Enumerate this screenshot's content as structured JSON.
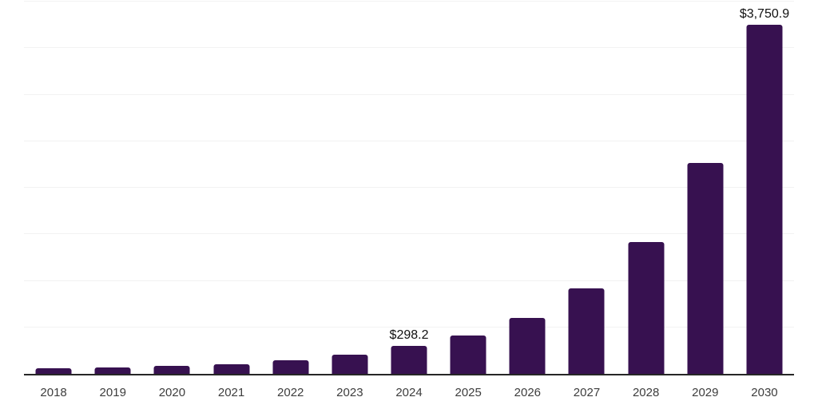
{
  "chart_data": {
    "type": "bar",
    "title": "",
    "xlabel": "",
    "ylabel": "",
    "categories": [
      "2018",
      "2019",
      "2020",
      "2021",
      "2022",
      "2023",
      "2024",
      "2025",
      "2026",
      "2027",
      "2028",
      "2029",
      "2030"
    ],
    "values": [
      60,
      72,
      86,
      107,
      149,
      205,
      298.2,
      408,
      602,
      921,
      1417,
      2265,
      3750.9
    ],
    "data_labels": {
      "2024": "$298.2",
      "2030": "$3,750.9"
    },
    "ylim": [
      0,
      4000
    ],
    "gridline_step": 500,
    "grid": "horizontal",
    "legend": "none",
    "y_axis_labels_visible": false,
    "bar_color": "#371150",
    "gridline_color": "#f2f2f2",
    "axis_color": "#262626",
    "tick_label_color": "#3d3d3d",
    "value_label_color": "#111111",
    "background_color": "#ffffff"
  }
}
